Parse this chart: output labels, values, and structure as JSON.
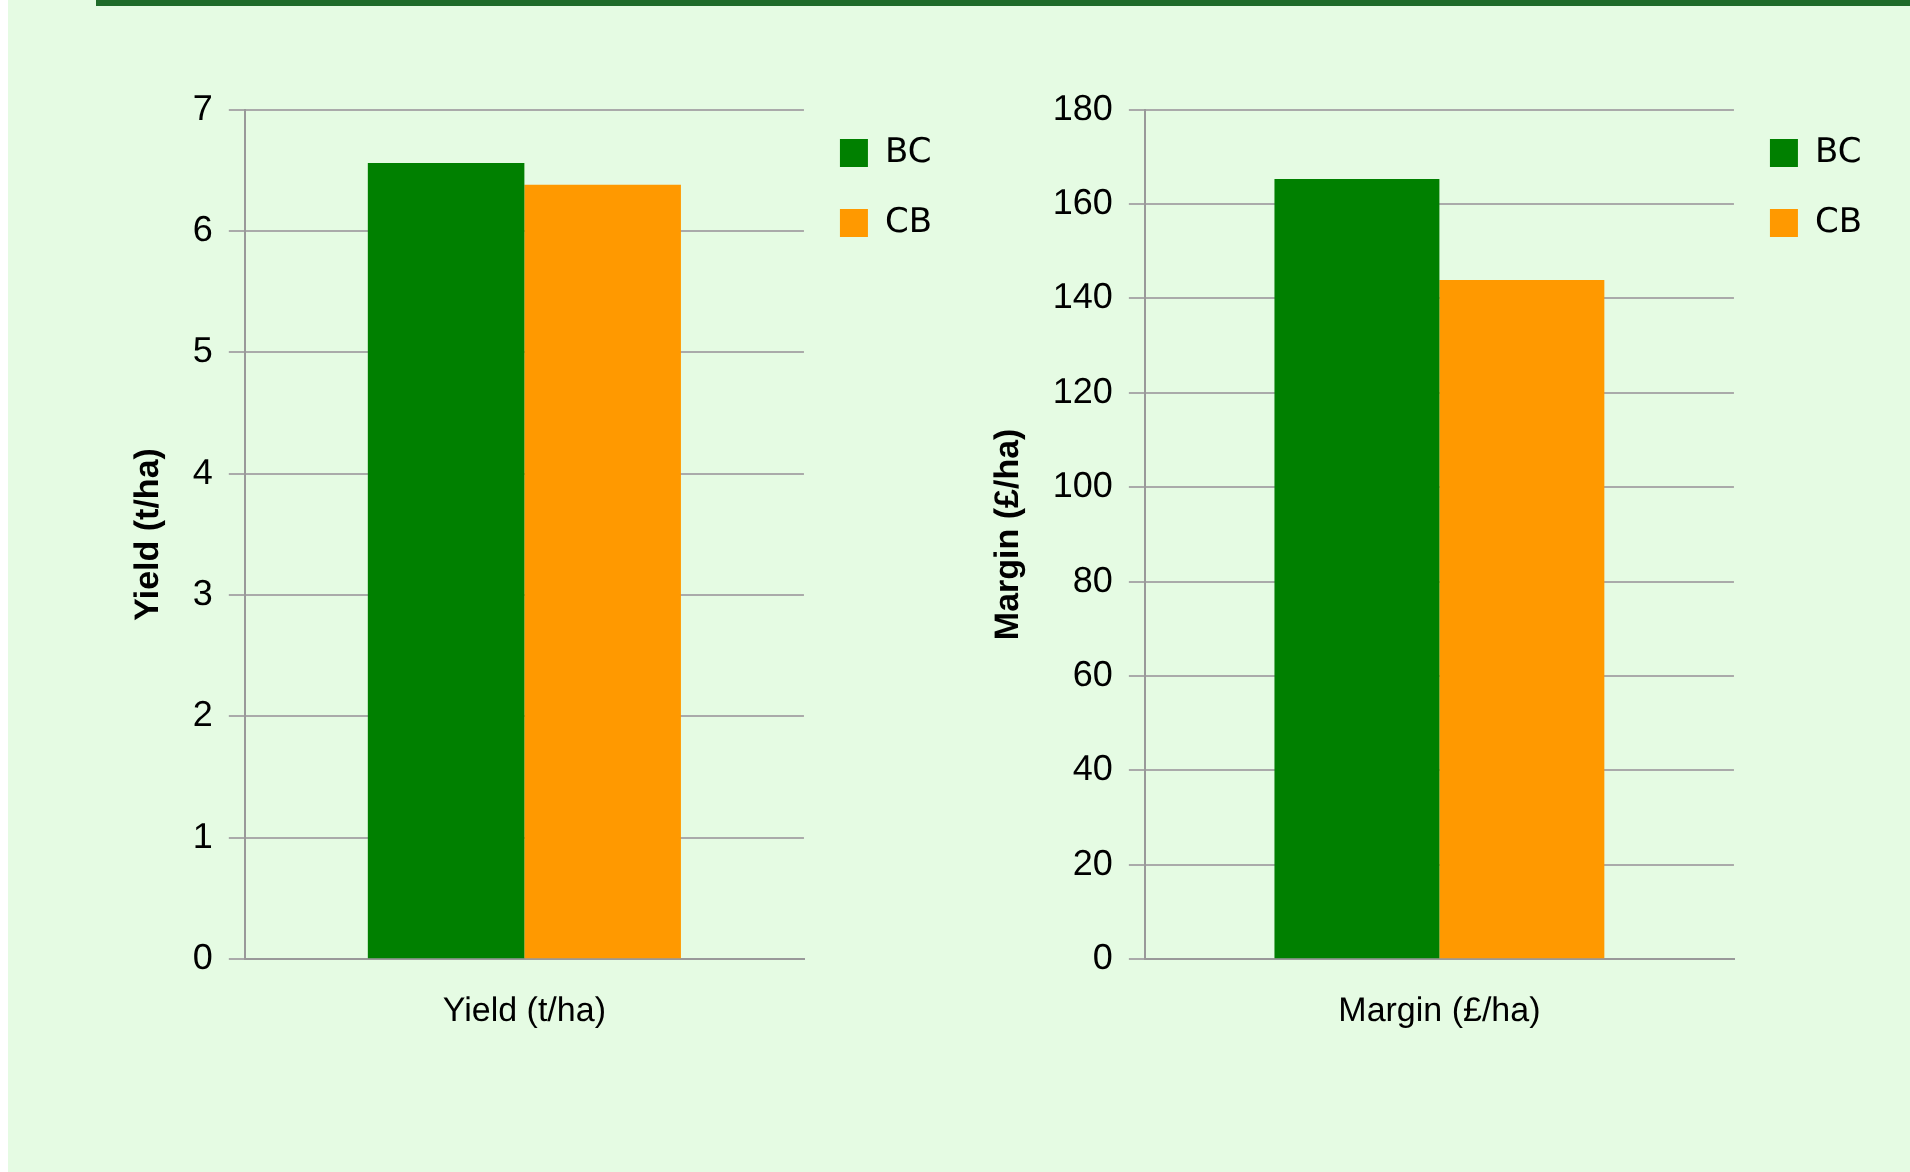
{
  "chart_data": [
    {
      "type": "bar",
      "categories": [
        "Yield (t/ha)"
      ],
      "ylabel": "Yield (t/ha)",
      "ylim": [
        0,
        7
      ],
      "yticks": [
        0,
        1,
        2,
        3,
        4,
        5,
        6,
        7
      ],
      "grid": "y",
      "legend": "top right",
      "series": [
        {
          "name": "BC",
          "color": "#008000",
          "values": [
            6.56
          ]
        },
        {
          "name": "CB",
          "color": "#ff9900",
          "values": [
            6.38
          ]
        }
      ]
    },
    {
      "type": "bar",
      "categories": [
        "Margin (£/ha)"
      ],
      "ylabel": "Margin (£/ha)",
      "ylim": [
        0,
        180
      ],
      "yticks": [
        0,
        20,
        40,
        60,
        80,
        100,
        120,
        140,
        160,
        180
      ],
      "grid": "y",
      "legend": "top right",
      "series": [
        {
          "name": "BC",
          "color": "#008000",
          "values": [
            165.3
          ]
        },
        {
          "name": "CB",
          "color": "#ff9900",
          "values": [
            143.9
          ]
        }
      ]
    }
  ]
}
